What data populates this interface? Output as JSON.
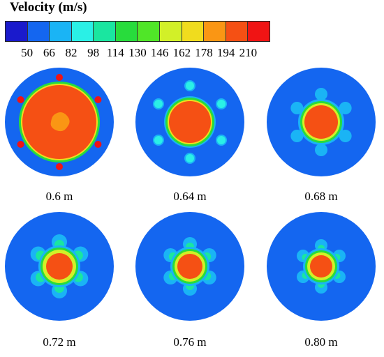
{
  "legend": {
    "title": "Velocity (m/s)",
    "ticks": [
      "50",
      "66",
      "82",
      "98",
      "114",
      "130",
      "146",
      "162",
      "178",
      "194",
      "210"
    ],
    "colors": [
      "#1a1acc",
      "#1466f0",
      "#1ab4f5",
      "#2af0e6",
      "#1ae6a0",
      "#28dc3c",
      "#50e628",
      "#d2f028",
      "#f0dc1e",
      "#fa9614",
      "#f55014",
      "#f01414"
    ]
  },
  "panels": [
    {
      "label": "0.6 m"
    },
    {
      "label": "0.64 m"
    },
    {
      "label": "0.68 m"
    },
    {
      "label": "0.72 m"
    },
    {
      "label": "0.76 m"
    },
    {
      "label": "0.80 m"
    }
  ]
}
